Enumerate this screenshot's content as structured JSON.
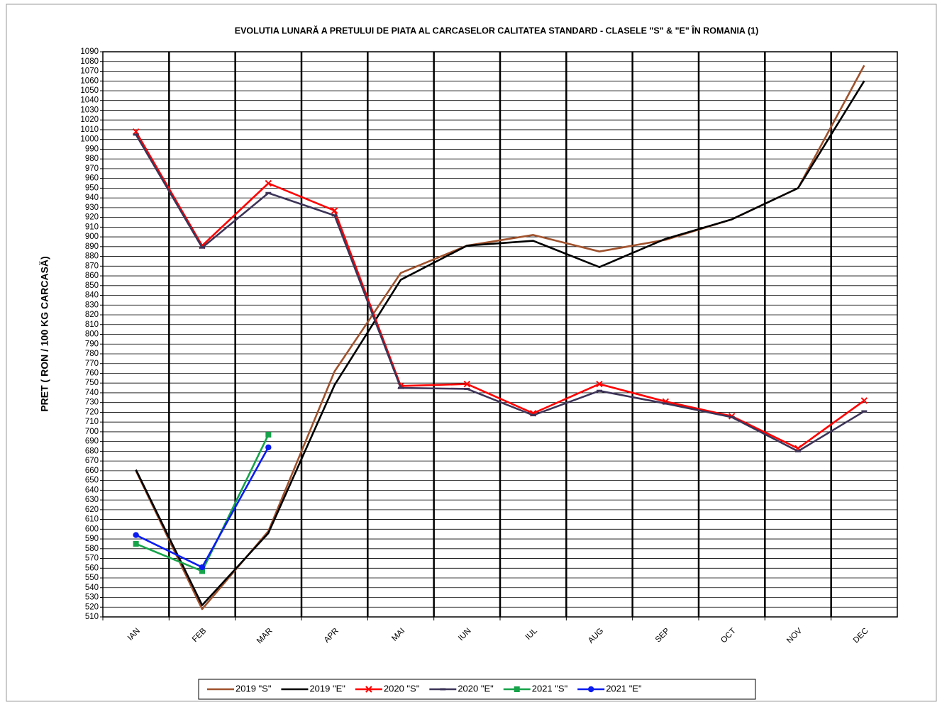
{
  "chart_data": {
    "type": "line",
    "title": "EVOLUTIA LUNARĂ A PRETULUI  DE PIATA  AL CARCASELOR CALITATEA STANDARD - CLASELE \"S\" & \"E\"  ÎN ROMANIA (1)",
    "y_label": "PRET ( RON / 100 KG CARCASĂ)",
    "categories": [
      "IAN",
      "FEB",
      "MAR",
      "APR",
      "MAI",
      "IUN",
      "IUL",
      "AUG",
      "SEP",
      "OCT",
      "NOV",
      "DEC"
    ],
    "series": [
      {
        "name": "2019 \"S\"",
        "color": "#a0522d",
        "marker": "none",
        "values": [
          660,
          518,
          598,
          762,
          863,
          891,
          902,
          885,
          897,
          918,
          950,
          1076
        ]
      },
      {
        "name": "2019 \"E\"",
        "color": "#000000",
        "marker": "none",
        "values": [
          661,
          522,
          596,
          748,
          856,
          891,
          896,
          869,
          898,
          918,
          950,
          1060
        ]
      },
      {
        "name": "2020 \"S\"",
        "color": "#ff0000",
        "marker": "x",
        "values": [
          1008,
          891,
          955,
          927,
          747,
          749,
          719,
          749,
          731,
          716,
          683,
          732
        ]
      },
      {
        "name": "2020 \"E\"",
        "color": "#3d3458",
        "marker": "dash",
        "values": [
          1005,
          889,
          945,
          922,
          745,
          744,
          717,
          742,
          729,
          715,
          680,
          721
        ]
      },
      {
        "name": "2021 \"S\"",
        "color": "#17a34a",
        "marker": "square",
        "values": [
          585,
          557,
          697,
          null,
          null,
          null,
          null,
          null,
          null,
          null,
          null,
          null
        ]
      },
      {
        "name": "2021 \"E\"",
        "color": "#0a1cf0",
        "marker": "circle",
        "values": [
          594,
          561,
          684,
          null,
          null,
          null,
          null,
          null,
          null,
          null,
          null,
          null
        ]
      }
    ],
    "ylim": [
      510,
      1090
    ],
    "yticks": [
      510,
      520,
      530,
      540,
      550,
      560,
      570,
      580,
      590,
      600,
      610,
      620,
      630,
      640,
      650,
      660,
      670,
      680,
      690,
      700,
      710,
      720,
      730,
      740,
      750,
      760,
      770,
      780,
      790,
      800,
      810,
      820,
      830,
      840,
      850,
      860,
      870,
      880,
      890,
      900,
      910,
      920,
      930,
      940,
      950,
      960,
      970,
      980,
      990,
      1000,
      1010,
      1020,
      1030,
      1040,
      1050,
      1060,
      1070,
      1080,
      1090
    ],
    "grid": true,
    "legend": "bottom"
  }
}
